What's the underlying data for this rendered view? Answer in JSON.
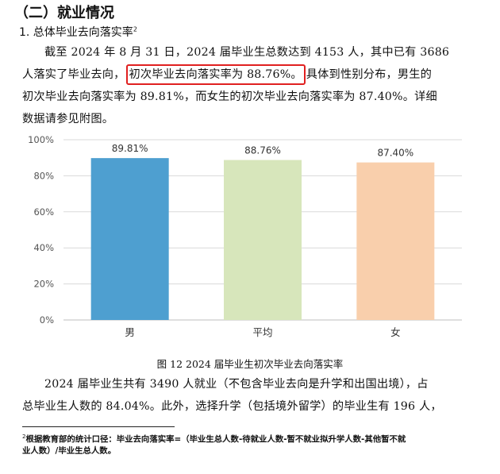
{
  "section": {
    "heading": "（二）就业情况",
    "subheading": "1. 总体毕业去向落实率",
    "subheading_note": "2"
  },
  "para1": {
    "line1": "截至 2024 年 8 月 31 日，2024 届毕业生总数达到 4153 人，其中已有 3686",
    "line2_before": "人落实了毕业去向，",
    "line2_highlight": "初次毕业去向落实率为 88.76%。",
    "line2_after": "具体到性别分布，男生的",
    "line3": "初次毕业去向落实率为 89.81%，而女生的初次毕业去向落实率为 87.40%。详细",
    "line4": "数据请参见附图。"
  },
  "chart_data": {
    "type": "bar",
    "categories": [
      "男",
      "平均",
      "女"
    ],
    "values": [
      89.81,
      88.76,
      87.4
    ],
    "data_labels": [
      "89.81%",
      "88.76%",
      "87.40%"
    ],
    "colors": [
      "#4e9fd0",
      "#d7e6bb",
      "#f9cfac"
    ],
    "ylim": [
      0,
      100
    ],
    "yticks": [
      "0%",
      "20%",
      "40%",
      "60%",
      "80%",
      "100%"
    ],
    "grid": true,
    "title": "",
    "xlabel": "",
    "ylabel": ""
  },
  "caption": "图 12 2024 届毕业生初次毕业去向落实率",
  "para2": {
    "line1": "2024 届毕业生共有 3490 人就业（不包含毕业去向是升学和出国出境），占",
    "line2": "总毕业生人数的 84.04%。此外，选择升学（包括境外留学）的毕业生有 196 人，"
  },
  "footnote": {
    "mark": "2",
    "line1": "根据教育部的统计口径：毕业去向落实率=（毕业生总人数-待就业人数-暂不就业拟升学人数-其他暂不就",
    "line2": "业人数）/毕业生总人数。"
  }
}
